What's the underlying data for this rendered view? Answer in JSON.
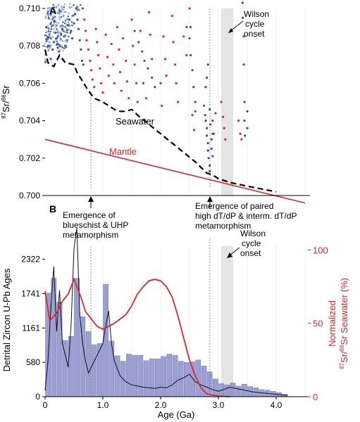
{
  "panel_a": {
    "letter": "A",
    "ylabel_sup": "87",
    "ylabel_mid": "Sr/",
    "ylabel_sup2": "86",
    "ylabel_end": "Sr",
    "seawater_label": "Seawater",
    "mantle_label": "Mantle",
    "wilson_label": [
      "Wilson",
      "cycle",
      "onset"
    ],
    "note_left": [
      "Emergence of",
      "blueschist & UHP",
      "metamorphism"
    ],
    "note_right": [
      "Emergence of paired",
      "high dT/dP & interm. dT/dP",
      "metamorphism"
    ]
  },
  "panel_b": {
    "letter": "B",
    "ylabel_left": "Detrital Zircon U-Pb Ages",
    "ylabel_right_1": "Normalized",
    "ylabel_right_sup": "87",
    "ylabel_right_mid": "Sr/",
    "ylabel_right_sup2": "86",
    "ylabel_right_end": "Sr Seawater (%)",
    "xlabel": "Age (Ga)",
    "wilson_label": [
      "Wilson",
      "cycle",
      "onset"
    ]
  },
  "colors": {
    "red": "#e3242b",
    "blue": "#2c4fa0",
    "light_blue": "#8ea3d8",
    "bar": "#8a8fc9",
    "bar_edge": "#5c62a8",
    "gray_band": "#e4e4e4"
  },
  "chart_data": [
    {
      "type": "scatter",
      "title": "",
      "ylabel": "87Sr/86Sr",
      "xlabel": "Age (Ga)",
      "xlim": [
        0,
        4.5
      ],
      "ylim": [
        0.7,
        0.71
      ],
      "yticks": [
        "0.700",
        "0.702",
        "0.704",
        "0.706",
        "0.708",
        "0.710"
      ],
      "series": [
        {
          "name": "Seawater",
          "style": "dashed-line",
          "x": [
            0.0,
            0.05,
            0.15,
            0.25,
            0.35,
            0.5,
            0.55,
            0.65,
            0.75,
            0.85,
            1.0,
            1.1,
            1.2,
            1.3,
            1.4,
            1.5,
            1.6,
            1.8,
            2.0,
            2.2,
            2.4,
            2.6,
            2.8,
            2.9,
            3.0,
            3.1,
            3.2,
            3.5,
            4.0
          ],
          "y": [
            0.7078,
            0.7071,
            0.7069,
            0.7075,
            0.7071,
            0.707,
            0.7066,
            0.7061,
            0.7056,
            0.7052,
            0.705,
            0.7048,
            0.7046,
            0.7045,
            0.7045,
            0.7046,
            0.7043,
            0.7038,
            0.7033,
            0.7028,
            0.7023,
            0.7018,
            0.7012,
            0.7011,
            0.7009,
            0.7008,
            0.7007,
            0.7005,
            0.7002
          ]
        },
        {
          "name": "Mantle",
          "style": "line",
          "x": [
            0.0,
            4.5
          ],
          "y": [
            0.703,
            0.6996
          ]
        },
        {
          "name": "Blue samples",
          "style": "points",
          "points": [
            [
              0.02,
              0.709
            ],
            [
              0.05,
              0.7084
            ],
            [
              0.08,
              0.708
            ],
            [
              0.1,
              0.7073
            ],
            [
              0.13,
              0.7078
            ],
            [
              0.15,
              0.7082
            ],
            [
              0.18,
              0.7087
            ],
            [
              0.2,
              0.7084
            ],
            [
              0.22,
              0.7079
            ],
            [
              0.24,
              0.7077
            ],
            [
              0.26,
              0.708
            ],
            [
              0.28,
              0.7086
            ],
            [
              0.3,
              0.7089
            ],
            [
              0.33,
              0.7085
            ],
            [
              0.35,
              0.708
            ],
            [
              0.38,
              0.7083
            ],
            [
              0.4,
              0.7091
            ],
            [
              0.42,
              0.7094
            ],
            [
              0.45,
              0.7088
            ],
            [
              0.47,
              0.7084
            ],
            [
              0.5,
              0.7092
            ],
            [
              0.52,
              0.7097
            ],
            [
              0.54,
              0.71
            ],
            [
              0.56,
              0.7094
            ],
            [
              0.58,
              0.7089
            ],
            [
              0.6,
              0.7083
            ],
            [
              0.62,
              0.7078
            ],
            [
              0.64,
              0.7072
            ],
            [
              0.66,
              0.707
            ],
            [
              1.55,
              0.7088
            ],
            [
              1.62,
              0.7082
            ],
            [
              1.68,
              0.7077
            ],
            [
              1.72,
              0.7072
            ],
            [
              1.78,
              0.7068
            ],
            [
              1.85,
              0.7063
            ],
            [
              1.9,
              0.7058
            ],
            [
              2.45,
              0.709
            ],
            [
              2.5,
              0.7084
            ],
            [
              2.52,
              0.7075
            ],
            [
              2.55,
              0.7067
            ],
            [
              2.57,
              0.7058
            ],
            [
              2.6,
              0.705
            ],
            [
              2.75,
              0.7048
            ],
            [
              2.77,
              0.7043
            ],
            [
              2.78,
              0.704
            ],
            [
              2.8,
              0.7036
            ],
            [
              2.8,
              0.7032
            ],
            [
              2.82,
              0.7028
            ],
            [
              2.82,
              0.7024
            ],
            [
              2.83,
              0.702
            ],
            [
              2.85,
              0.7016
            ],
            [
              2.85,
              0.7013
            ],
            [
              2.86,
              0.7038
            ],
            [
              2.88,
              0.703
            ],
            [
              2.88,
              0.7025
            ],
            [
              2.9,
              0.7021
            ],
            [
              2.9,
              0.7033
            ],
            [
              2.78,
              0.7058
            ],
            [
              2.8,
              0.7063
            ],
            [
              2.82,
              0.707
            ],
            [
              2.85,
              0.7046
            ],
            [
              3.42,
              0.7103
            ],
            [
              3.42,
              0.7095
            ],
            [
              3.44,
              0.7085
            ],
            [
              3.44,
              0.707
            ],
            [
              3.45,
              0.705
            ],
            [
              3.45,
              0.704
            ],
            [
              3.46,
              0.7032
            ],
            [
              3.5,
              0.7045
            ],
            [
              3.5,
              0.7036
            ]
          ]
        },
        {
          "name": "Red samples",
          "style": "points",
          "points": [
            [
              0.65,
              0.71
            ],
            [
              0.68,
              0.7094
            ],
            [
              0.7,
              0.7088
            ],
            [
              0.72,
              0.7083
            ],
            [
              0.75,
              0.7078
            ],
            [
              0.78,
              0.7072
            ],
            [
              0.8,
              0.7067
            ],
            [
              0.82,
              0.7062
            ],
            [
              0.85,
              0.7058
            ],
            [
              0.88,
              0.7089
            ],
            [
              0.9,
              0.7082
            ],
            [
              0.92,
              0.7075
            ],
            [
              0.95,
              0.7068
            ],
            [
              0.97,
              0.706
            ],
            [
              1.0,
              0.7055
            ],
            [
              1.05,
              0.7086
            ],
            [
              1.08,
              0.7074
            ],
            [
              1.1,
              0.7064
            ],
            [
              1.15,
              0.7081
            ],
            [
              1.18,
              0.707
            ],
            [
              1.2,
              0.706
            ],
            [
              1.25,
              0.709
            ],
            [
              1.28,
              0.7078
            ],
            [
              1.3,
              0.7066
            ],
            [
              1.32,
              0.7056
            ],
            [
              1.35,
              0.7084
            ],
            [
              1.4,
              0.7072
            ],
            [
              1.42,
              0.7061
            ],
            [
              1.45,
              0.7052
            ],
            [
              1.5,
              0.7094
            ],
            [
              1.52,
              0.708
            ],
            [
              1.55,
              0.707
            ],
            [
              1.58,
              0.706
            ],
            [
              1.6,
              0.705
            ],
            [
              1.65,
              0.7088
            ],
            [
              1.7,
              0.706
            ],
            [
              1.75,
              0.7052
            ],
            [
              1.8,
              0.7098
            ],
            [
              1.82,
              0.7086
            ],
            [
              1.85,
              0.7073
            ],
            [
              2.0,
              0.706
            ],
            [
              2.02,
              0.7048
            ],
            [
              2.05,
              0.7085
            ],
            [
              2.08,
              0.7073
            ],
            [
              2.1,
              0.7064
            ],
            [
              2.2,
              0.7096
            ],
            [
              2.22,
              0.7082
            ],
            [
              2.25,
              0.707
            ],
            [
              2.27,
              0.706
            ],
            [
              2.3,
              0.705
            ],
            [
              2.4,
              0.7085
            ],
            [
              2.45,
              0.7075
            ],
            [
              2.5,
              0.71
            ],
            [
              2.52,
              0.709
            ],
            [
              2.55,
              0.7043
            ],
            [
              2.58,
              0.7035
            ],
            [
              2.6,
              0.7045
            ],
            [
              2.9,
              0.704
            ],
            [
              2.92,
              0.7033
            ],
            [
              2.95,
              0.7044
            ],
            [
              3.05,
              0.705
            ],
            [
              3.08,
              0.7042
            ],
            [
              3.1,
              0.7036
            ],
            [
              3.12,
              0.703
            ],
            [
              3.35,
              0.704
            ],
            [
              3.38,
              0.7033
            ],
            [
              3.4,
              0.703
            ]
          ]
        }
      ],
      "annotations": [
        "Seawater",
        "Mantle",
        "Wilson cycle onset"
      ]
    },
    {
      "type": "bar",
      "title": "",
      "xlabel": "Age (Ga)",
      "ylabel": "Detrital Zircon U-Pb Ages",
      "xlim": [
        0,
        4.5
      ],
      "ylim": [
        0,
        2900
      ],
      "yticks": [
        0,
        580,
        1161,
        1741,
        2322
      ],
      "xticks": [
        0,
        1.0,
        2.0,
        3.0,
        4.0
      ],
      "bin_width": 0.1,
      "bins_x": [
        0.05,
        0.15,
        0.25,
        0.35,
        0.45,
        0.55,
        0.65,
        0.75,
        0.85,
        0.95,
        1.05,
        1.15,
        1.25,
        1.35,
        1.45,
        1.55,
        1.65,
        1.75,
        1.85,
        1.95,
        2.05,
        2.15,
        2.25,
        2.35,
        2.45,
        2.55,
        2.65,
        2.75,
        2.85,
        2.95,
        3.05,
        3.15,
        3.25,
        3.35,
        3.45,
        3.55,
        3.65,
        3.75,
        3.85,
        3.95,
        4.05,
        4.15
      ],
      "bins_count": [
        1750,
        2000,
        1600,
        950,
        1020,
        2000,
        1350,
        1100,
        880,
        900,
        1900,
        940,
        690,
        600,
        720,
        700,
        700,
        610,
        640,
        640,
        680,
        720,
        700,
        600,
        580,
        590,
        620,
        520,
        420,
        300,
        220,
        200,
        230,
        180,
        210,
        170,
        150,
        120,
        110,
        90,
        70,
        40
      ],
      "series": [
        {
          "name": "Normalized 87Sr/86Sr Seawater (%)",
          "axis": "right",
          "ylim": [
            0,
            117
          ],
          "yticks": [
            0,
            50,
            100
          ],
          "x": [
            0.0,
            0.08,
            0.2,
            0.3,
            0.4,
            0.5,
            0.55,
            0.62,
            0.7,
            0.8,
            0.9,
            1.0,
            1.1,
            1.2,
            1.3,
            1.4,
            1.5,
            1.6,
            1.7,
            1.8,
            1.9,
            2.0,
            2.1,
            2.2,
            2.3,
            2.4,
            2.5,
            2.6,
            2.7,
            2.8,
            2.9,
            3.0,
            3.1,
            3.2
          ],
          "y": [
            72,
            52,
            57,
            65,
            70,
            80,
            75,
            68,
            58,
            53,
            48,
            46,
            48,
            50,
            53,
            56,
            62,
            70,
            75,
            79,
            80,
            79,
            75,
            68,
            55,
            40,
            25,
            14,
            6,
            2,
            1,
            0.5,
            0.2,
            0
          ]
        },
        {
          "name": "Detrital zircon density",
          "axis": "left",
          "x": [
            0.0,
            0.05,
            0.1,
            0.15,
            0.2,
            0.25,
            0.3,
            0.35,
            0.4,
            0.45,
            0.5,
            0.55,
            0.6,
            0.65,
            0.7,
            0.75,
            0.8,
            0.9,
            1.0,
            1.05,
            1.1,
            1.15,
            1.2,
            1.3,
            1.4,
            1.5,
            1.6,
            1.7,
            1.8,
            1.9,
            2.0,
            2.1,
            2.2,
            2.3,
            2.4,
            2.5,
            2.6,
            2.7,
            2.8,
            2.9,
            3.0,
            3.2,
            3.4,
            3.6,
            3.8,
            4.0,
            4.2
          ],
          "y": [
            100,
            600,
            1500,
            2200,
            1100,
            1800,
            900,
            700,
            500,
            1200,
            2500,
            2850,
            1400,
            900,
            600,
            400,
            500,
            700,
            900,
            1200,
            1450,
            900,
            600,
            350,
            250,
            200,
            180,
            160,
            150,
            140,
            160,
            150,
            200,
            280,
            320,
            380,
            250,
            200,
            160,
            120,
            90,
            160,
            120,
            80,
            60,
            40,
            20
          ]
        }
      ],
      "annotations": [
        "Wilson cycle onset"
      ]
    }
  ]
}
